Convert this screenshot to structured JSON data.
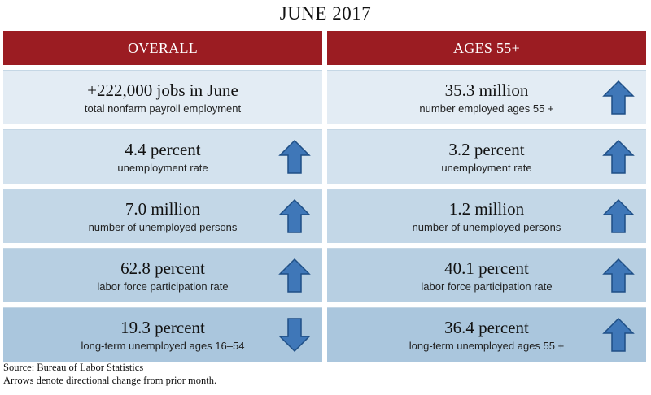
{
  "title": "JUNE 2017",
  "columns": [
    {
      "header": "OVERALL",
      "rows": [
        {
          "value": "+222,000 jobs in June",
          "desc": "total nonfarm payroll employment",
          "arrow": "none"
        },
        {
          "value": "4.4 percent",
          "desc": "unemployment rate",
          "arrow": "up"
        },
        {
          "value": "7.0 million",
          "desc": "number of unemployed persons",
          "arrow": "up"
        },
        {
          "value": "62.8 percent",
          "desc": "labor force participation rate",
          "arrow": "up"
        },
        {
          "value": "19.3 percent",
          "desc": "long-term unemployed ages 16–54",
          "arrow": "down"
        }
      ]
    },
    {
      "header": "AGES 55+",
      "rows": [
        {
          "value": "35.3 million",
          "desc": "number employed ages 55 +",
          "arrow": "up"
        },
        {
          "value": "3.2 percent",
          "desc": "unemployment rate",
          "arrow": "up"
        },
        {
          "value": "1.2 million",
          "desc": "number of unemployed persons",
          "arrow": "up"
        },
        {
          "value": "40.1 percent",
          "desc": "labor force participation rate",
          "arrow": "up"
        },
        {
          "value": "36.4 percent",
          "desc": "long-term unemployed ages 55 +",
          "arrow": "up"
        }
      ]
    }
  ],
  "footer": {
    "source": "Source: Bureau of Labor Statistics",
    "note": "Arrows denote directional change from prior month."
  },
  "colors": {
    "header_bg": "#9b1c22",
    "arrow_fill": "#3f77b8",
    "arrow_stroke": "#1f4f86"
  },
  "icons": {
    "up": "arrow-up-icon",
    "down": "arrow-down-icon"
  }
}
